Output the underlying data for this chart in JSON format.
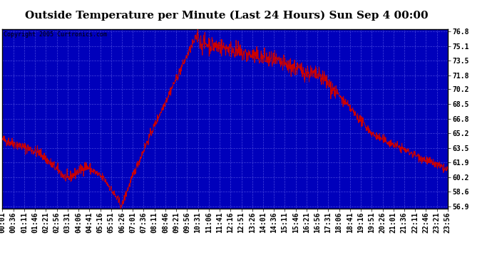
{
  "title": "Outside Temperature per Minute (Last 24 Hours) Sun Sep 4 00:00",
  "copyright": "Copyright 2005 Curtronics.com",
  "background_color": "#0000bb",
  "line_color": "#cc0000",
  "grid_color": "#4444dd",
  "title_color": "#000000",
  "ylim_min": 56.9,
  "ylim_max": 76.8,
  "yticks": [
    56.9,
    58.6,
    60.2,
    61.9,
    63.5,
    65.2,
    66.8,
    68.5,
    70.2,
    71.8,
    73.5,
    75.1,
    76.8
  ],
  "xtick_labels": [
    "00:01",
    "00:36",
    "01:11",
    "01:46",
    "02:21",
    "02:56",
    "03:31",
    "04:06",
    "04:41",
    "05:16",
    "05:51",
    "06:26",
    "07:01",
    "07:36",
    "08:11",
    "08:46",
    "09:21",
    "09:56",
    "10:31",
    "11:06",
    "11:41",
    "12:16",
    "12:51",
    "13:26",
    "14:01",
    "14:36",
    "15:11",
    "15:46",
    "16:21",
    "16:56",
    "17:31",
    "18:06",
    "18:41",
    "19:16",
    "19:51",
    "20:26",
    "21:01",
    "21:36",
    "22:11",
    "22:46",
    "23:21",
    "23:56"
  ],
  "font_size_title": 11,
  "font_size_ticks": 7,
  "font_size_copyright": 6,
  "n_points": 1440
}
